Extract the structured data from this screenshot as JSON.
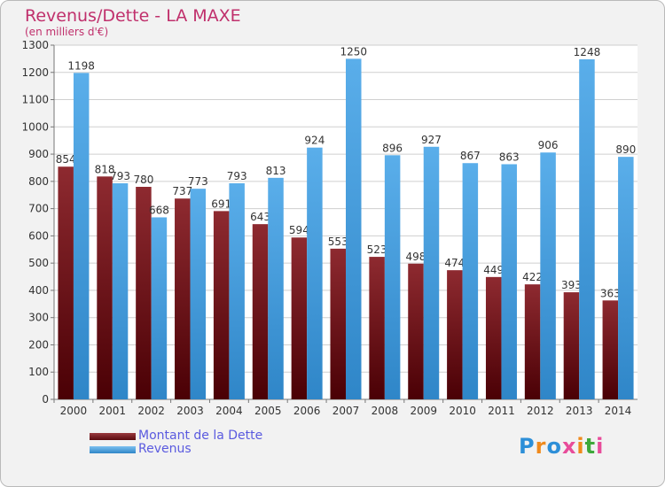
{
  "title": "Revenus/Dette - LA MAXE",
  "subtitle": "(en milliers d'€)",
  "logo": {
    "text": "Proxiti",
    "letters": [
      "P",
      "r",
      "o",
      "x",
      "i",
      "t",
      "i"
    ],
    "colors": [
      "#2d8fd8",
      "#f08a1c",
      "#2d8fd8",
      "#e84c9a",
      "#f08a1c",
      "#3ea83a",
      "#e84c9a"
    ]
  },
  "chart_data": {
    "type": "bar",
    "categories": [
      "2000",
      "2001",
      "2002",
      "2003",
      "2004",
      "2005",
      "2006",
      "2007",
      "2008",
      "2009",
      "2010",
      "2011",
      "2012",
      "2013",
      "2014"
    ],
    "series": [
      {
        "name": "Montant de la Dette",
        "color": "#7a1a1f",
        "values": [
          854,
          818,
          780,
          737,
          691,
          643,
          594,
          553,
          523,
          498,
          474,
          449,
          422,
          393,
          363
        ]
      },
      {
        "name": "Revenus",
        "color": "#4fa4e3",
        "values": [
          1198,
          793,
          668,
          773,
          793,
          813,
          924,
          1250,
          896,
          927,
          867,
          863,
          906,
          1248,
          890
        ]
      }
    ],
    "value_labels": [
      [
        "854",
        "818",
        "780",
        "737",
        "691",
        "643",
        "594",
        "553",
        "523",
        "498",
        "474",
        "449",
        "422",
        "393",
        "363"
      ],
      [
        "1198",
        "793",
        "668",
        "773",
        "793",
        "813",
        "924",
        "1250",
        "896",
        "927",
        "867",
        "863",
        "906",
        "1248",
        "890"
      ]
    ],
    "yticks": [
      "0",
      "100",
      "200",
      "300",
      "400",
      "500",
      "600",
      "700",
      "800",
      "900",
      "1000",
      "1100",
      "1200",
      "1300"
    ],
    "ylim": [
      0,
      1300
    ],
    "grid": true,
    "legend_position": "bottom-left"
  }
}
